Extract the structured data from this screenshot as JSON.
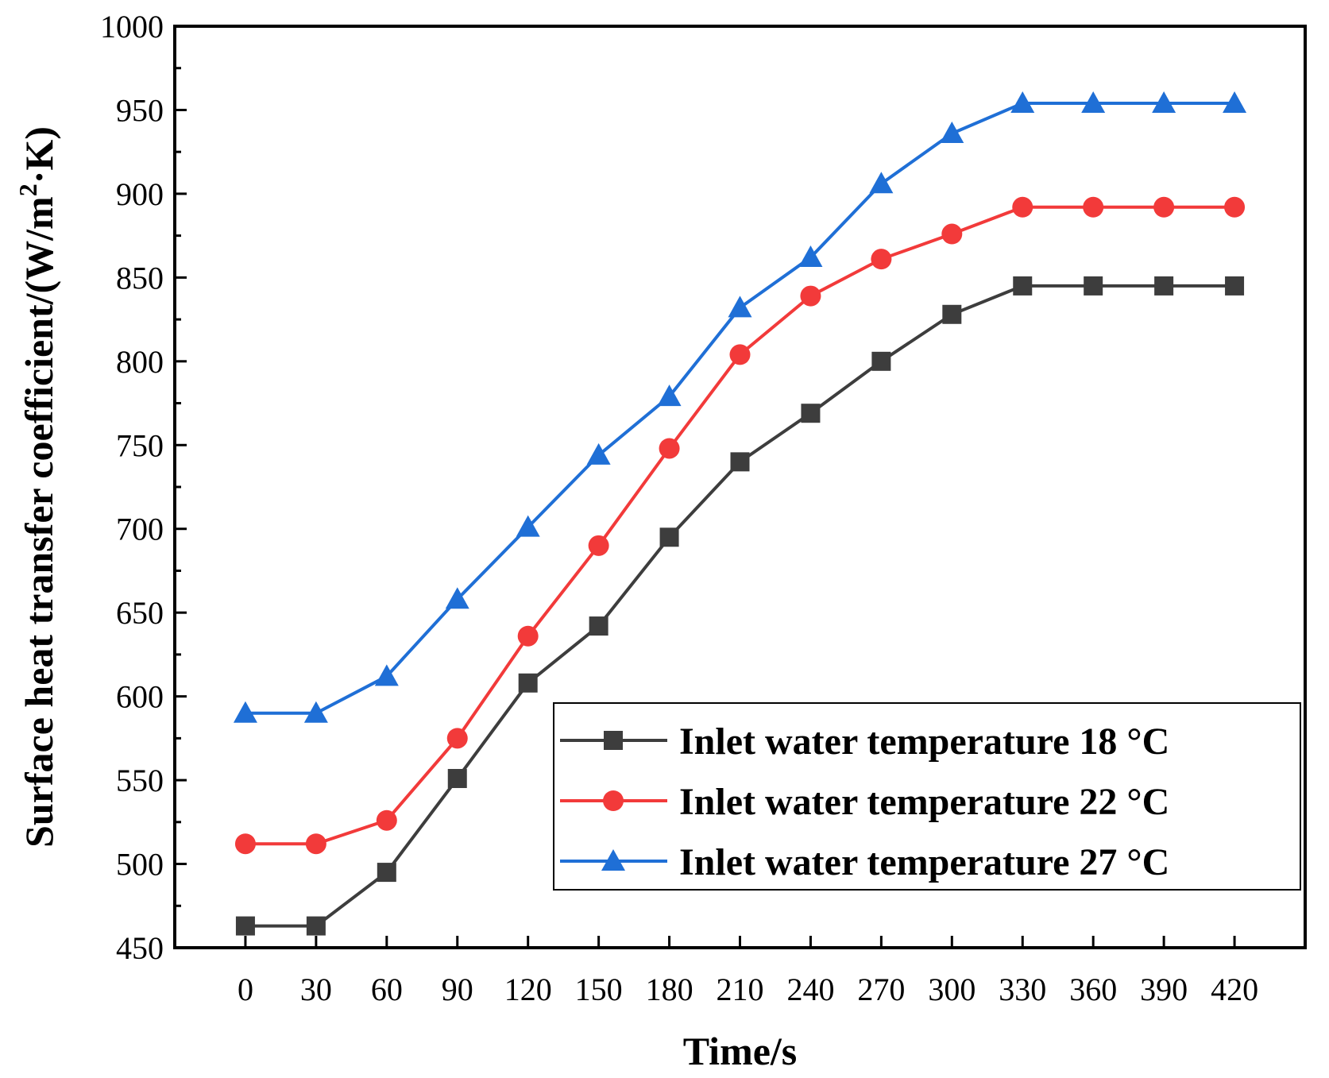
{
  "chart_data": {
    "type": "line",
    "title": "",
    "xlabel": "Time/s",
    "ylabel_main": "Surface heat transfer coefficient/(W/m",
    "ylabel_sup": "2",
    "ylabel_tail": "·K)",
    "x": [
      0,
      30,
      60,
      90,
      120,
      150,
      180,
      210,
      240,
      270,
      300,
      330,
      360,
      390,
      420
    ],
    "x_tick_labels": [
      "0",
      "30",
      "60",
      "90",
      "120",
      "150",
      "180",
      "210",
      "240",
      "270",
      "300",
      "330",
      "360",
      "390",
      "420"
    ],
    "xlim": [
      -30,
      450
    ],
    "ylim": [
      450,
      1000
    ],
    "y_ticks": [
      450,
      500,
      550,
      600,
      650,
      700,
      750,
      800,
      850,
      900,
      950,
      1000
    ],
    "grid": false,
    "legend_position": "bottom-right",
    "series": [
      {
        "name": "Inlet water temperature 18 °C",
        "color": "#3d3d3d",
        "marker": "square",
        "values": [
          463,
          463,
          495,
          551,
          608,
          642,
          695,
          740,
          769,
          800,
          828,
          845,
          845,
          845,
          845
        ]
      },
      {
        "name": "Inlet water temperature 22 °C",
        "color": "#f23a3a",
        "marker": "circle",
        "values": [
          512,
          512,
          526,
          575,
          636,
          690,
          748,
          804,
          839,
          861,
          876,
          892,
          892,
          892,
          892
        ]
      },
      {
        "name": "Inlet water temperature 27 °C",
        "color": "#1f6fd6",
        "marker": "triangle",
        "values": [
          590,
          590,
          612,
          658,
          701,
          744,
          779,
          832,
          862,
          906,
          936,
          954,
          954,
          954,
          954
        ]
      }
    ]
  }
}
